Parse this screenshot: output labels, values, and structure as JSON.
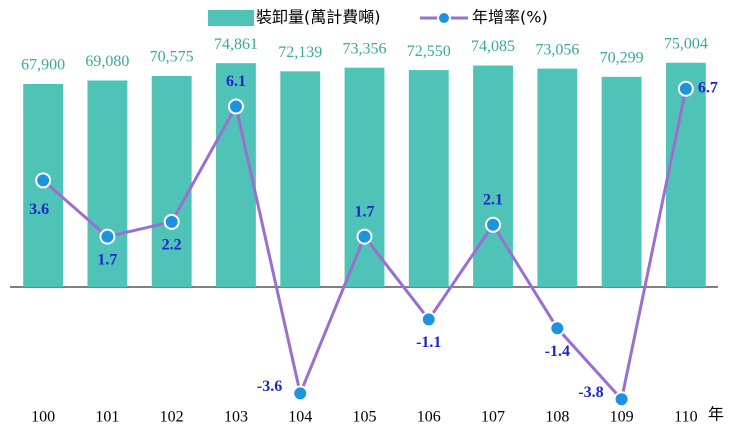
{
  "chart_data": {
    "type": "bar",
    "categories": [
      "100",
      "101",
      "102",
      "103",
      "104",
      "105",
      "106",
      "107",
      "108",
      "109",
      "110"
    ],
    "x_label": "年",
    "ylim": [
      -44500,
      96000
    ],
    "y2lim": [
      -4.5,
      9.7
    ],
    "grid": false,
    "legend": "top",
    "series": [
      {
        "name": "裝卸量(萬計費噸)",
        "type": "bar",
        "color": "#4fc3b8",
        "label_color": "#3aa89e",
        "values": [
          67900,
          69080,
          70575,
          74861,
          72139,
          73356,
          72550,
          74085,
          73056,
          70299,
          75004
        ],
        "value_labels": [
          "67,900",
          "69,080",
          "70,575",
          "74,861",
          "72,139",
          "73,356",
          "72,550",
          "74,085",
          "73,056",
          "70,299",
          "75,004"
        ]
      },
      {
        "name": "年增率(%)",
        "type": "line",
        "axis": "y2",
        "color": "#9b6fd0",
        "marker_color": "#1b93de",
        "label_color": "#1a28c8",
        "values": [
          3.6,
          1.7,
          2.2,
          6.1,
          -3.6,
          1.7,
          -1.1,
          2.1,
          -1.4,
          -3.8,
          6.7
        ]
      }
    ]
  }
}
